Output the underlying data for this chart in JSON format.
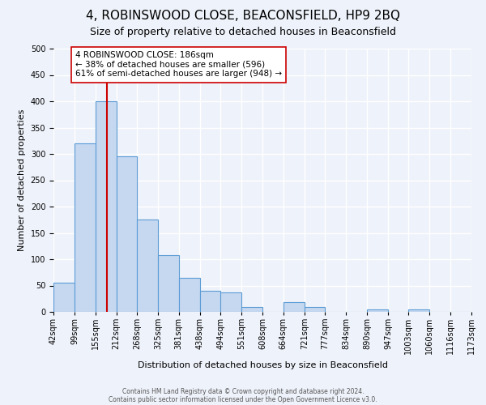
{
  "title": "4, ROBINSWOOD CLOSE, BEACONSFIELD, HP9 2BQ",
  "subtitle": "Size of property relative to detached houses in Beaconsfield",
  "xlabel": "Distribution of detached houses by size in Beaconsfield",
  "ylabel": "Number of detached properties",
  "bar_values": [
    55,
    320,
    400,
    295,
    175,
    108,
    65,
    40,
    37,
    10,
    0,
    18,
    10,
    0,
    0,
    5,
    0,
    5,
    0,
    0
  ],
  "bin_edges": [
    42,
    99,
    155,
    212,
    268,
    325,
    381,
    438,
    494,
    551,
    608,
    664,
    721,
    777,
    834,
    890,
    947,
    1003,
    1060,
    1116,
    1173
  ],
  "tick_labels": [
    "42sqm",
    "99sqm",
    "155sqm",
    "212sqm",
    "268sqm",
    "325sqm",
    "381sqm",
    "438sqm",
    "494sqm",
    "551sqm",
    "608sqm",
    "664sqm",
    "721sqm",
    "777sqm",
    "834sqm",
    "890sqm",
    "947sqm",
    "1003sqm",
    "1060sqm",
    "1116sqm",
    "1173sqm"
  ],
  "bar_color": "#c5d8f0",
  "bar_edge_color": "#5b9bd5",
  "red_line_x": 186,
  "annotation_box_text": "4 ROBINSWOOD CLOSE: 186sqm\n← 38% of detached houses are smaller (596)\n61% of semi-detached houses are larger (948) →",
  "red_line_color": "#cc0000",
  "ylim": [
    0,
    500
  ],
  "yticks": [
    0,
    50,
    100,
    150,
    200,
    250,
    300,
    350,
    400,
    450,
    500
  ],
  "footnote1": "Contains HM Land Registry data © Crown copyright and database right 2024.",
  "footnote2": "Contains public sector information licensed under the Open Government Licence v3.0.",
  "background_color": "#eef2fa",
  "grid_color": "#ffffff",
  "title_fontsize": 11,
  "subtitle_fontsize": 9,
  "axis_label_fontsize": 8,
  "tick_fontsize": 7,
  "annot_fontsize": 7.5
}
